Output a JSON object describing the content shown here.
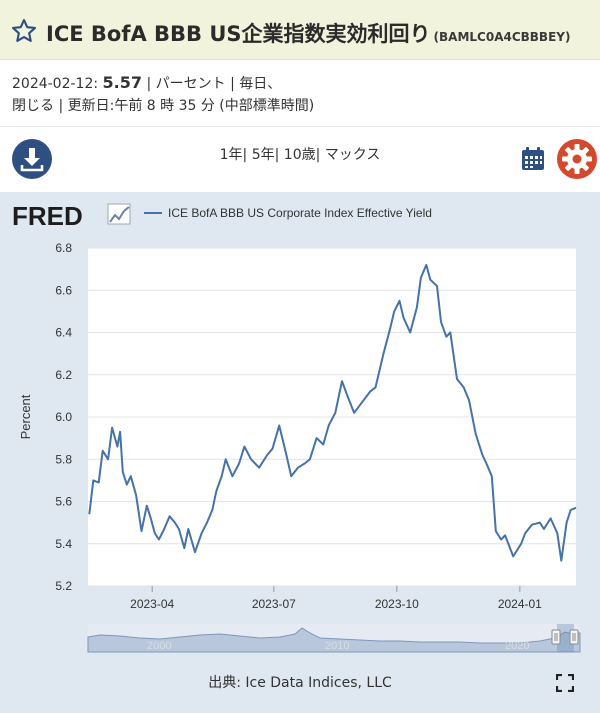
{
  "header": {
    "title": "ICE BofA BBB US企業指数実効利回り",
    "series_id": "(BAMLC0A4CBBBEY)"
  },
  "meta": {
    "date": "2024-02-12:",
    "value": "5.57",
    "units": "| パーセント | 毎日、",
    "line2": "閉じる | 更新日:午前 8 時 35 分 (中部標準時間)"
  },
  "ranges": [
    "1年|",
    "5年|",
    "10歳|",
    "マックス"
  ],
  "chart": {
    "logo": "FRED",
    "legend": "ICE BofA BBB US Corporate Index Effective Yield",
    "ylabel": "Percent",
    "source": "出典: Ice Data Indices, LLC",
    "navigator_labels": [
      "2000",
      "2010",
      "2020"
    ]
  },
  "colors": {
    "line": "#4572a7",
    "header_bg": "#f1f3dc",
    "panel_bg": "#dfe8f1",
    "dark_blue": "#2e4f82",
    "gear": "#d4482d"
  },
  "chart_data": {
    "type": "line",
    "ylim": [
      5.2,
      6.8
    ],
    "yticks": [
      "5.2",
      "5.4",
      "5.6",
      "5.8",
      "6.0",
      "6.2",
      "6.4",
      "6.6",
      "6.8"
    ],
    "xticks": [
      "2023-04",
      "2023-07",
      "2023-10",
      "2024-01"
    ],
    "x_range": [
      "2023-02-12",
      "2024-02-12"
    ],
    "series": [
      {
        "name": "ICE BofA BBB US Corporate Index Effective Yield",
        "points": [
          [
            "2023-02-13",
            5.54
          ],
          [
            "2023-02-16",
            5.7
          ],
          [
            "2023-02-20",
            5.69
          ],
          [
            "2023-02-23",
            5.84
          ],
          [
            "2023-02-27",
            5.8
          ],
          [
            "2023-03-02",
            5.95
          ],
          [
            "2023-03-06",
            5.86
          ],
          [
            "2023-03-08",
            5.93
          ],
          [
            "2023-03-10",
            5.74
          ],
          [
            "2023-03-13",
            5.68
          ],
          [
            "2023-03-16",
            5.72
          ],
          [
            "2023-03-20",
            5.63
          ],
          [
            "2023-03-24",
            5.46
          ],
          [
            "2023-03-28",
            5.58
          ],
          [
            "2023-03-31",
            5.52
          ],
          [
            "2023-04-03",
            5.45
          ],
          [
            "2023-04-06",
            5.42
          ],
          [
            "2023-04-10",
            5.47
          ],
          [
            "2023-04-14",
            5.53
          ],
          [
            "2023-04-18",
            5.5
          ],
          [
            "2023-04-21",
            5.47
          ],
          [
            "2023-04-25",
            5.38
          ],
          [
            "2023-04-28",
            5.47
          ],
          [
            "2023-05-03",
            5.36
          ],
          [
            "2023-05-08",
            5.45
          ],
          [
            "2023-05-12",
            5.5
          ],
          [
            "2023-05-16",
            5.56
          ],
          [
            "2023-05-19",
            5.65
          ],
          [
            "2023-05-23",
            5.72
          ],
          [
            "2023-05-26",
            5.8
          ],
          [
            "2023-05-31",
            5.72
          ],
          [
            "2023-06-05",
            5.78
          ],
          [
            "2023-06-09",
            5.86
          ],
          [
            "2023-06-14",
            5.8
          ],
          [
            "2023-06-20",
            5.76
          ],
          [
            "2023-06-26",
            5.82
          ],
          [
            "2023-06-30",
            5.85
          ],
          [
            "2023-07-05",
            5.96
          ],
          [
            "2023-07-10",
            5.83
          ],
          [
            "2023-07-14",
            5.72
          ],
          [
            "2023-07-19",
            5.76
          ],
          [
            "2023-07-24",
            5.78
          ],
          [
            "2023-07-28",
            5.8
          ],
          [
            "2023-08-02",
            5.9
          ],
          [
            "2023-08-07",
            5.87
          ],
          [
            "2023-08-11",
            5.96
          ],
          [
            "2023-08-16",
            6.02
          ],
          [
            "2023-08-21",
            6.17
          ],
          [
            "2023-08-25",
            6.1
          ],
          [
            "2023-08-30",
            6.02
          ],
          [
            "2023-09-05",
            6.07
          ],
          [
            "2023-09-11",
            6.12
          ],
          [
            "2023-09-15",
            6.14
          ],
          [
            "2023-09-21",
            6.3
          ],
          [
            "2023-09-26",
            6.42
          ],
          [
            "2023-09-29",
            6.5
          ],
          [
            "2023-10-03",
            6.55
          ],
          [
            "2023-10-06",
            6.47
          ],
          [
            "2023-10-11",
            6.4
          ],
          [
            "2023-10-16",
            6.52
          ],
          [
            "2023-10-19",
            6.66
          ],
          [
            "2023-10-23",
            6.72
          ],
          [
            "2023-10-26",
            6.65
          ],
          [
            "2023-10-31",
            6.62
          ],
          [
            "2023-11-03",
            6.45
          ],
          [
            "2023-11-07",
            6.38
          ],
          [
            "2023-11-10",
            6.4
          ],
          [
            "2023-11-15",
            6.18
          ],
          [
            "2023-11-20",
            6.14
          ],
          [
            "2023-11-24",
            6.08
          ],
          [
            "2023-11-29",
            5.92
          ],
          [
            "2023-12-04",
            5.82
          ],
          [
            "2023-12-07",
            5.78
          ],
          [
            "2023-12-11",
            5.72
          ],
          [
            "2023-12-14",
            5.46
          ],
          [
            "2023-12-18",
            5.42
          ],
          [
            "2023-12-21",
            5.44
          ],
          [
            "2023-12-27",
            5.34
          ],
          [
            "2024-01-02",
            5.4
          ],
          [
            "2024-01-05",
            5.45
          ],
          [
            "2024-01-10",
            5.49
          ],
          [
            "2024-01-16",
            5.5
          ],
          [
            "2024-01-19",
            5.47
          ],
          [
            "2024-01-24",
            5.52
          ],
          [
            "2024-01-29",
            5.45
          ],
          [
            "2024-02-01",
            5.32
          ],
          [
            "2024-02-05",
            5.5
          ],
          [
            "2024-02-08",
            5.56
          ],
          [
            "2024-02-12",
            5.57
          ]
        ]
      }
    ]
  }
}
